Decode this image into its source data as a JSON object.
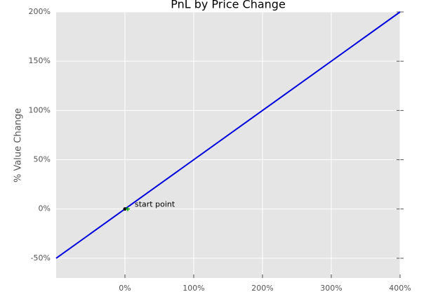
{
  "chart_data": {
    "type": "line",
    "title": "PnL by Price Change",
    "y_label": "% Value Change",
    "x": [
      -100,
      400
    ],
    "series": [
      {
        "color": "#0000dd",
        "values": [
          -50,
          200
        ]
      }
    ],
    "xlim": [
      -100,
      400
    ],
    "ylim": [
      -70,
      200
    ],
    "xticks": [
      {
        "value": 0,
        "label": "0%"
      },
      {
        "value": 100,
        "label": "100%"
      },
      {
        "value": 200,
        "label": "200%"
      },
      {
        "value": 300,
        "label": "300%"
      },
      {
        "value": 400,
        "label": "400%"
      }
    ],
    "yticks": [
      {
        "value": -50,
        "label": "-50%"
      },
      {
        "value": 0,
        "label": "0%"
      },
      {
        "value": 50,
        "label": "50%"
      },
      {
        "value": 100,
        "label": "100%"
      },
      {
        "value": 150,
        "label": "150%"
      },
      {
        "value": 200,
        "label": "200%"
      }
    ],
    "grid": true,
    "annotation": {
      "x": 0,
      "y": 0,
      "text": "start point",
      "color": "#00aa00"
    }
  }
}
